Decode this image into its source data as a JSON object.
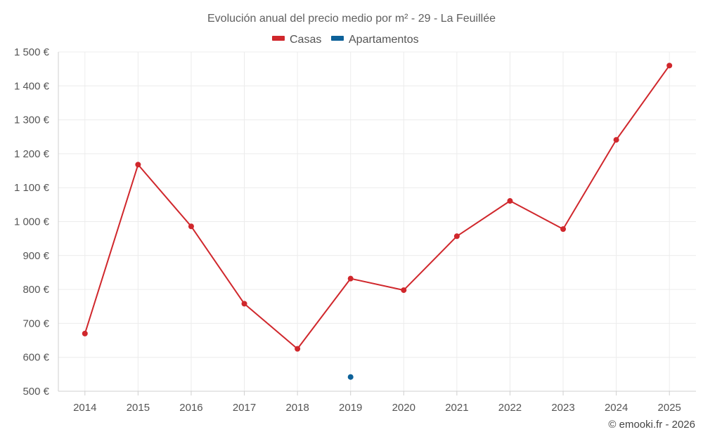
{
  "chart_data": {
    "type": "line",
    "title": "Evolución anual del precio medio por m² - 29 - La Feuillée",
    "categories": [
      "2014",
      "2015",
      "2016",
      "2017",
      "2018",
      "2019",
      "2020",
      "2021",
      "2022",
      "2023",
      "2024",
      "2025"
    ],
    "y_ticks": [
      "500 €",
      "600 €",
      "700 €",
      "800 €",
      "900 €",
      "1 000 €",
      "1 100 €",
      "1 200 €",
      "1 300 €",
      "1 400 €",
      "1 500 €"
    ],
    "ylim": [
      500,
      1500
    ],
    "grid": true,
    "legend_position": "top-center",
    "series": [
      {
        "name": "Casas",
        "color": "#d0272c",
        "values": [
          670,
          1168,
          986,
          758,
          625,
          832,
          798,
          957,
          1061,
          978,
          1241,
          1460
        ]
      },
      {
        "name": "Apartamentos",
        "color": "#0d6199",
        "values": [
          null,
          null,
          null,
          null,
          null,
          542,
          null,
          null,
          null,
          null,
          null,
          null
        ]
      }
    ]
  },
  "credit": "© emooki.fr - 2026"
}
